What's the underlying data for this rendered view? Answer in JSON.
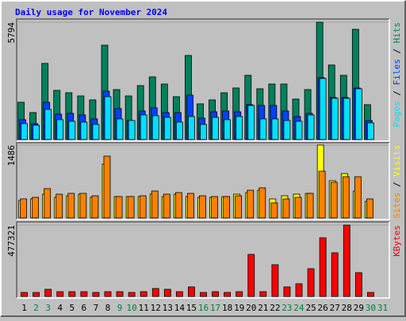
{
  "chart_data": {
    "type": "bar",
    "title": "Daily usage for November 2024",
    "title_color": "#0000ff",
    "legend_separator": "/",
    "categories": [
      "1",
      "2",
      "3",
      "4",
      "5",
      "6",
      "7",
      "8",
      "9",
      "10",
      "11",
      "12",
      "13",
      "14",
      "15",
      "16",
      "17",
      "18",
      "19",
      "20",
      "21",
      "22",
      "23",
      "24",
      "25",
      "26",
      "27",
      "28",
      "29",
      "30",
      "31"
    ],
    "category_colors": [
      "#000000",
      "#008040",
      "#008040",
      "#000000",
      "#000000",
      "#000000",
      "#000000",
      "#000000",
      "#008040",
      "#008040",
      "#000000",
      "#000000",
      "#000000",
      "#000000",
      "#000000",
      "#008040",
      "#008040",
      "#000000",
      "#000000",
      "#000000",
      "#000000",
      "#000000",
      "#008040",
      "#008040",
      "#000000",
      "#000000",
      "#000000",
      "#000000",
      "#000000",
      "#008040",
      "#008040"
    ],
    "panels": [
      {
        "ylim": [
          0,
          5794
        ],
        "yticks": [
          5794
        ],
        "series": [
          {
            "name": "Pages",
            "color": "#00e0ff",
            "values": [
              783,
              705,
              1488,
              979,
              900,
              861,
              744,
              2114,
              1018,
              940,
              1214,
              1175,
              1096,
              861,
              1135,
              744,
              1096,
              979,
              1135,
              1683,
              1018,
              1018,
              940,
              900,
              1214,
              3015,
              2036,
              2036,
              2506,
              822,
              null
            ]
          },
          {
            "name": "Files",
            "color": "#0040ff",
            "values": [
              979,
              783,
              1840,
              1253,
              1292,
              1214,
              1018,
              2388,
              1527,
              940,
              1409,
              1566,
              1331,
              1331,
              2192,
              1057,
              1370,
              1409,
              1370,
              1722,
              1683,
              1683,
              1409,
              1135,
              1292,
              3054,
              2075,
              2075,
              2545,
              940,
              null
            ]
          },
          {
            "name": "Hits",
            "color": "#00805c",
            "values": [
              1840,
              1331,
              3758,
              2427,
              2310,
              2153,
              1957,
              4659,
              2466,
              2153,
              2662,
              3093,
              2740,
              2114,
              4150,
              1762,
              1957,
              2310,
              2545,
              3171,
              2506,
              2740,
              2740,
              1997,
              2466,
              5794,
              3680,
              3171,
              5442,
              1722,
              null
            ]
          }
        ]
      },
      {
        "ylim": [
          0,
          1486
        ],
        "yticks": [
          1486
        ],
        "series": [
          {
            "name": "Sites",
            "color": "#ff8000",
            "values": [
              388,
              420,
              598,
              485,
              501,
              501,
              452,
              1260,
              436,
              436,
              452,
              549,
              485,
              517,
              501,
              452,
              436,
              436,
              452,
              565,
              614,
              307,
              388,
              420,
              501,
              953,
              727,
              840,
              840,
              388,
              null
            ]
          },
          {
            "name": "Visits",
            "color": "#ffff00",
            "values": [
              355,
              388,
              485,
              420,
              452,
              485,
              420,
              1098,
              436,
              436,
              436,
              485,
              436,
              485,
              436,
              420,
              420,
              436,
              485,
              517,
              565,
              388,
              452,
              485,
              501,
              1486,
              759,
              904,
              549,
              339,
              null
            ]
          }
        ]
      },
      {
        "ylim": [
          0,
          477321
        ],
        "yticks": [
          477321
        ],
        "series": [
          {
            "name": "KBytes",
            "color": "#ff0000",
            "values": [
              26520,
              26520,
              47736,
              31826,
              31826,
              31826,
              26520,
              31826,
              31826,
              26520,
              31826,
              53040,
              47736,
              31826,
              63650,
              26520,
              31826,
              26520,
              31826,
              281112,
              31826,
              212160,
              63650,
              84864,
              185640,
              392496,
              291720,
              477321,
              159120,
              26520,
              null
            ]
          }
        ]
      }
    ]
  }
}
